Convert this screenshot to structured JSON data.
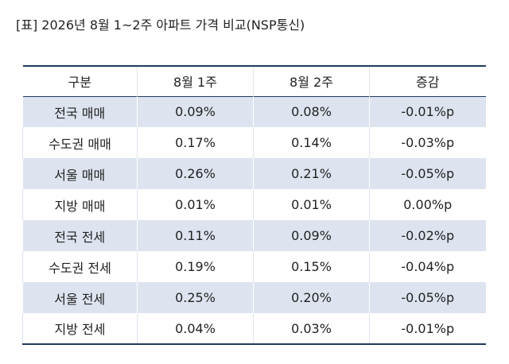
{
  "caption": "[표] 2026년 8월 1~2주 아파트 가격 비교(NSP통신)",
  "table": {
    "headers": [
      "구분",
      "8월 1주",
      "8월 2주",
      "증감"
    ],
    "rows": [
      [
        "전국 매매",
        "0.09%",
        "0.08%",
        "-0.01%p"
      ],
      [
        "수도권 매매",
        "0.17%",
        "0.14%",
        "-0.03%p"
      ],
      [
        "서울 매매",
        "0.26%",
        "0.21%",
        "-0.05%p"
      ],
      [
        "지방 매매",
        "0.01%",
        "0.01%",
        "0.00%p"
      ],
      [
        "전국 전세",
        "0.11%",
        "0.09%",
        "-0.02%p"
      ],
      [
        "수도권 전세",
        "0.19%",
        "0.15%",
        "-0.04%p"
      ],
      [
        "서울 전세",
        "0.25%",
        "0.20%",
        "-0.05%p"
      ],
      [
        "지방 전세",
        "0.04%",
        "0.03%",
        "-0.01%p"
      ]
    ]
  },
  "colors": {
    "rule": "#1f3a5f",
    "stripe": "#dde4ef",
    "text": "#222222"
  }
}
